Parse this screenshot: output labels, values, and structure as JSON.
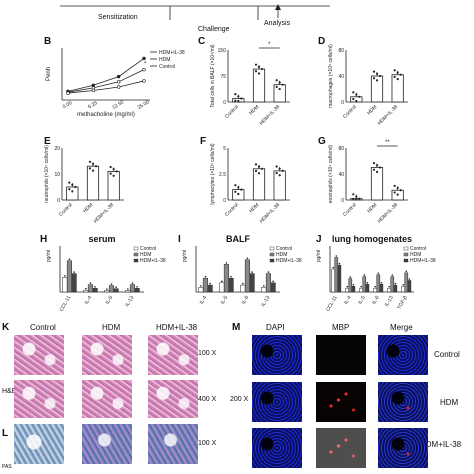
{
  "timeline": {
    "steps": [
      "Sensitization",
      "Challenge",
      "Analysis"
    ]
  },
  "panels": {
    "B": {
      "letter": "B"
    },
    "C": {
      "letter": "C"
    },
    "D": {
      "letter": "D"
    },
    "E": {
      "letter": "E"
    },
    "F": {
      "letter": "F"
    },
    "G": {
      "letter": "G"
    },
    "H": {
      "letter": "H"
    },
    "I": {
      "letter": "I"
    },
    "J": {
      "letter": "J"
    },
    "K": {
      "letter": "K"
    },
    "L": {
      "letter": "L"
    },
    "M": {
      "letter": "M"
    }
  },
  "histology": {
    "columns": [
      "Control",
      "HDM",
      "HDM+IL-38"
    ],
    "row_labels": [
      "H&E",
      "PAS"
    ],
    "magnifications": [
      "100 X",
      "400 X",
      "100 X"
    ]
  },
  "immuno": {
    "columns": [
      "DAPI",
      "MBP",
      "Merge"
    ],
    "rows": [
      "Control",
      "HDM",
      "HDM+IL-38"
    ],
    "magnification": "200 X"
  },
  "colors": {
    "axis": "#222222",
    "he_stain": "#d07fb3",
    "pas_stain": "#6f93b9",
    "dapi": "#1d2bd6",
    "mbp": "#ff2a2a"
  },
  "chart_data": [
    {
      "panel": "B",
      "type": "line",
      "x": [
        "0.00",
        "6.25",
        "12.50",
        "25.00"
      ],
      "xlabel": "methacholine (mg/ml)",
      "ylabel": "Penh",
      "series": [
        {
          "name": "HDM+IL-38",
          "values": [
            0.9,
            1.4,
            2.1,
            3.5
          ]
        },
        {
          "name": "HDM",
          "values": [
            1.0,
            1.7,
            2.7,
            4.8
          ]
        },
        {
          "name": "Control",
          "values": [
            0.8,
            1.1,
            1.5,
            2.2
          ]
        }
      ],
      "ylim": [
        0,
        6
      ],
      "annotations": [
        "*"
      ]
    },
    {
      "panel": "C",
      "type": "bar",
      "categories": [
        "Control",
        "HDM",
        "HDM+IL-38"
      ],
      "values": [
        10,
        95,
        50
      ],
      "ylabel": "Total cells in BALF (×10⁴/ml)",
      "ylim": [
        0,
        150
      ],
      "annotations": [
        "*"
      ]
    },
    {
      "panel": "D",
      "type": "bar",
      "categories": [
        "Control",
        "HDM",
        "HDM+IL-38"
      ],
      "values": [
        8,
        40,
        42
      ],
      "ylabel": "macrophages (×10⁴ cells/ml)",
      "ylim": [
        0,
        80
      ]
    },
    {
      "panel": "E",
      "type": "bar",
      "categories": [
        "Control",
        "HDM",
        "HDM+IL-38"
      ],
      "values": [
        5,
        13,
        11
      ],
      "ylabel": "neutrophils (×10⁴ cells/ml)",
      "ylim": [
        0,
        20
      ]
    },
    {
      "panel": "F",
      "type": "bar",
      "categories": [
        "Control",
        "HDM",
        "HDM+IL-38"
      ],
      "values": [
        1,
        3,
        2.8
      ],
      "ylabel": "lymphocytes (×10⁴ cells/ml)",
      "ylim": [
        0,
        5
      ]
    },
    {
      "panel": "G",
      "type": "bar",
      "categories": [
        "Control",
        "HDM",
        "HDM+IL-38"
      ],
      "values": [
        2,
        50,
        15
      ],
      "ylabel": "eosinophils (×10⁴ cells/ml)",
      "ylim": [
        0,
        80
      ],
      "annotations": [
        "**"
      ]
    },
    {
      "panel": "H",
      "type": "bar",
      "title": "serum",
      "categories": [
        "CCL-11",
        "IL-4",
        "IL-5",
        "IL-13"
      ],
      "series": [
        {
          "name": "Control",
          "values": [
            80,
            10,
            8,
            8
          ]
        },
        {
          "name": "HDM",
          "values": [
            170,
            40,
            35,
            40
          ]
        },
        {
          "name": "HDM+IL-38",
          "values": [
            100,
            20,
            18,
            20
          ]
        }
      ],
      "ylabel": "pg/ml",
      "ylim": [
        0,
        250
      ]
    },
    {
      "panel": "I",
      "type": "bar",
      "title": "BALF",
      "categories": [
        "IL-4",
        "IL-5",
        "IL-6",
        "IL-13"
      ],
      "series": [
        {
          "name": "Control",
          "values": [
            10,
            20,
            15,
            10
          ]
        },
        {
          "name": "HDM",
          "values": [
            30,
            60,
            70,
            40
          ]
        },
        {
          "name": "HDM+IL-38",
          "values": [
            15,
            30,
            40,
            20
          ]
        }
      ],
      "ylabel": "pg/ml",
      "ylim": [
        0,
        100
      ]
    },
    {
      "panel": "J",
      "type": "bar",
      "title": "lung homogenates",
      "categories": [
        "CCL-11",
        "IL-4",
        "IL-5",
        "IL-6",
        "IL-13",
        "TGF-β"
      ],
      "series": [
        {
          "name": "Control",
          "values": [
            60,
            10,
            10,
            10,
            10,
            15
          ]
        },
        {
          "name": "HDM",
          "values": [
            90,
            35,
            40,
            45,
            40,
            50
          ]
        },
        {
          "name": "HDM+IL-38",
          "values": [
            70,
            15,
            20,
            20,
            18,
            30
          ]
        }
      ],
      "ylabel": "pg/ml",
      "ylim": [
        0,
        120
      ]
    }
  ]
}
